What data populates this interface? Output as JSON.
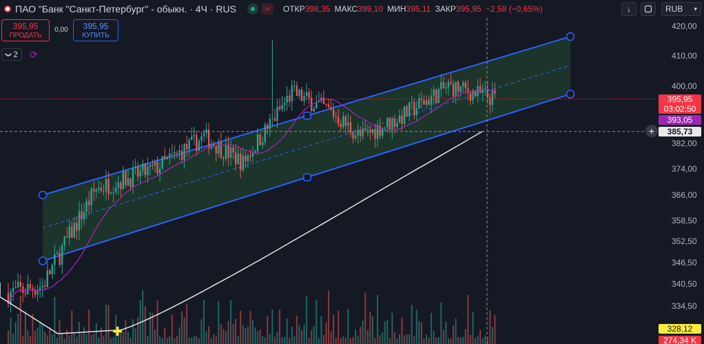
{
  "header": {
    "symbol_title": "ПАО \"Банк \"Санкт-Петербург\" - обыкн. · 4Ч · RUS",
    "ohlc": [
      {
        "label": "ОТКР",
        "value": "398,35"
      },
      {
        "label": "МАКС",
        "value": "399,10"
      },
      {
        "label": "МИН",
        "value": "395,11"
      },
      {
        "label": "ЗАКР",
        "value": "395,95"
      }
    ],
    "change": "−2,58 (−0,65%)"
  },
  "controls": {
    "down_arrow": "↓",
    "currency": "RUB",
    "currency_caret": "▾"
  },
  "trade": {
    "sell_price": "395,95",
    "sell_label": "ПРОДАТЬ",
    "spread": "0,00",
    "buy_price": "395,95",
    "buy_label": "КУПИТЬ"
  },
  "indicators": {
    "toggle_label": "2",
    "toggle_chevron": "❯"
  },
  "price_tags": {
    "last_price": "395,95",
    "countdown": "03:02:50",
    "ma_value": "393,05",
    "crosshair_price": "385,73",
    "ma200_value": "328,12",
    "volume_value": "274,34 K"
  },
  "colors": {
    "background": "#151924",
    "channel_line": "#2962ff",
    "channel_fill": "#1f3d2c",
    "candle_up": "#26a69a",
    "candle_down": "#ef5350",
    "ma_fast": "#9c27b0",
    "ma_slow": "#e6e6e6",
    "last_price": "#f23645",
    "crosshair": "#8a8d97"
  },
  "chart_data": {
    "type": "candlestick",
    "interval": "4Ч",
    "currency": "RUB",
    "y_ticks": [
      "420,00",
      "410,00",
      "400,00",
      "382,00",
      "374,00",
      "366,00",
      "358,50",
      "352,50",
      "346,50",
      "340,50",
      "334,50"
    ],
    "y_tick_values": [
      420.0,
      410.0,
      400.0,
      382.0,
      374.0,
      366.0,
      358.5,
      352.5,
      346.5,
      340.5,
      334.5
    ],
    "ylim": [
      326,
      422
    ],
    "n_bars": 200,
    "last_close": 395.95,
    "high_spike": 415.5,
    "channel": {
      "upper": {
        "start": 366.0,
        "end": 416.5
      },
      "lower": {
        "start": 347.0,
        "end": 397.5
      },
      "mid_anchor": 366.0
    },
    "ma_fast_last": 393.05,
    "ma_slow_last": 385.73,
    "grid": false,
    "crosshair_price": 385.73
  }
}
